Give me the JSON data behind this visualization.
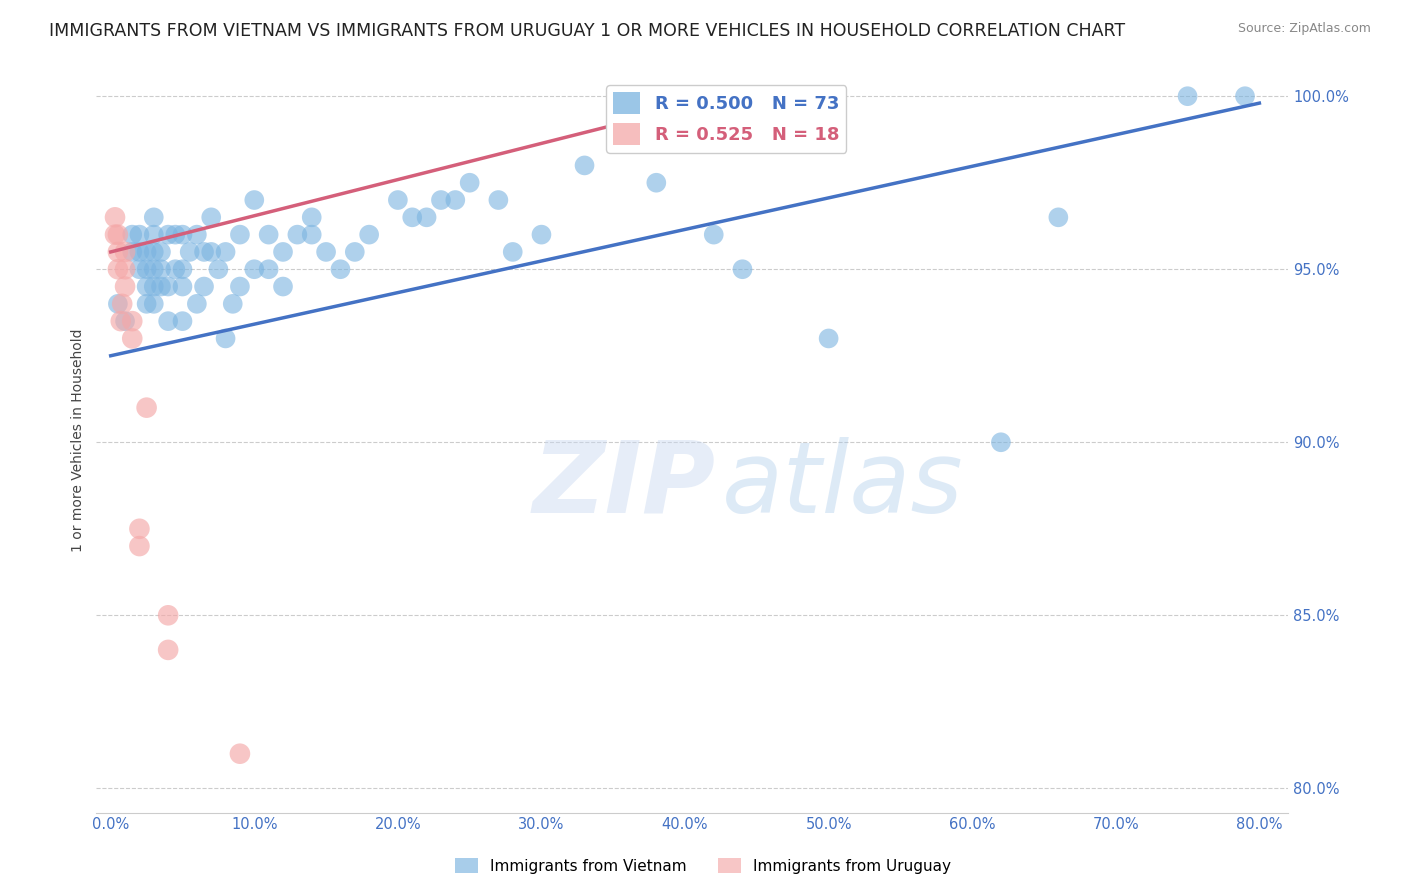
{
  "title": "IMMIGRANTS FROM VIETNAM VS IMMIGRANTS FROM URUGUAY 1 OR MORE VEHICLES IN HOUSEHOLD CORRELATION CHART",
  "source": "Source: ZipAtlas.com",
  "ylabel": "1 or more Vehicles in Household",
  "xlim": [
    -0.01,
    0.82
  ],
  "ylim": [
    0.793,
    1.008
  ],
  "xticks": [
    0.0,
    0.1,
    0.2,
    0.3,
    0.4,
    0.5,
    0.6,
    0.7,
    0.8
  ],
  "xticklabels": [
    "0.0%",
    "10.0%",
    "20.0%",
    "30.0%",
    "40.0%",
    "50.0%",
    "60.0%",
    "70.0%",
    "80.0%"
  ],
  "yticks": [
    0.8,
    0.85,
    0.9,
    0.95,
    1.0
  ],
  "yticklabels": [
    "80.0%",
    "85.0%",
    "90.0%",
    "95.0%",
    "100.0%"
  ],
  "vietnam_R": 0.5,
  "vietnam_N": 73,
  "uruguay_R": 0.525,
  "uruguay_N": 18,
  "vietnam_color": "#7ab3e0",
  "uruguay_color": "#f4a8a8",
  "vietnam_line_color": "#4472c4",
  "uruguay_line_color": "#d45f7a",
  "watermark_zip": "ZIP",
  "watermark_atlas": "atlas",
  "vietnam_x": [
    0.005,
    0.01,
    0.015,
    0.015,
    0.02,
    0.02,
    0.02,
    0.025,
    0.025,
    0.025,
    0.025,
    0.03,
    0.03,
    0.03,
    0.03,
    0.03,
    0.03,
    0.035,
    0.035,
    0.035,
    0.04,
    0.04,
    0.04,
    0.045,
    0.045,
    0.05,
    0.05,
    0.05,
    0.05,
    0.055,
    0.06,
    0.06,
    0.065,
    0.065,
    0.07,
    0.07,
    0.075,
    0.08,
    0.08,
    0.085,
    0.09,
    0.09,
    0.1,
    0.1,
    0.11,
    0.11,
    0.12,
    0.12,
    0.13,
    0.14,
    0.14,
    0.15,
    0.16,
    0.17,
    0.18,
    0.2,
    0.21,
    0.22,
    0.23,
    0.24,
    0.25,
    0.27,
    0.28,
    0.3,
    0.33,
    0.38,
    0.42,
    0.44,
    0.5,
    0.62,
    0.66,
    0.75,
    0.79
  ],
  "vietnam_y": [
    0.94,
    0.935,
    0.955,
    0.96,
    0.95,
    0.955,
    0.96,
    0.94,
    0.945,
    0.95,
    0.955,
    0.94,
    0.945,
    0.95,
    0.955,
    0.96,
    0.965,
    0.945,
    0.95,
    0.955,
    0.935,
    0.945,
    0.96,
    0.95,
    0.96,
    0.935,
    0.945,
    0.95,
    0.96,
    0.955,
    0.94,
    0.96,
    0.945,
    0.955,
    0.955,
    0.965,
    0.95,
    0.93,
    0.955,
    0.94,
    0.945,
    0.96,
    0.95,
    0.97,
    0.95,
    0.96,
    0.945,
    0.955,
    0.96,
    0.96,
    0.965,
    0.955,
    0.95,
    0.955,
    0.96,
    0.97,
    0.965,
    0.965,
    0.97,
    0.97,
    0.975,
    0.97,
    0.955,
    0.96,
    0.98,
    0.975,
    0.96,
    0.95,
    0.93,
    0.9,
    0.965,
    1.0,
    1.0
  ],
  "uruguay_x": [
    0.003,
    0.003,
    0.005,
    0.005,
    0.005,
    0.007,
    0.008,
    0.01,
    0.01,
    0.01,
    0.015,
    0.015,
    0.02,
    0.02,
    0.025,
    0.04,
    0.04,
    0.09
  ],
  "uruguay_y": [
    0.96,
    0.965,
    0.95,
    0.955,
    0.96,
    0.935,
    0.94,
    0.945,
    0.95,
    0.955,
    0.93,
    0.935,
    0.87,
    0.875,
    0.91,
    0.84,
    0.85,
    0.81
  ],
  "vietnam_trend_x0": 0.0,
  "vietnam_trend_x1": 0.8,
  "vietnam_trend_y0": 0.925,
  "vietnam_trend_y1": 0.998,
  "uruguay_trend_x0": 0.0,
  "uruguay_trend_x1": 0.44,
  "uruguay_trend_y0": 0.955,
  "uruguay_trend_y1": 1.001,
  "background_color": "#ffffff",
  "grid_color": "#cccccc",
  "tick_label_color": "#4472c4",
  "title_fontsize": 12.5,
  "axis_label_fontsize": 10,
  "source_color": "#888888",
  "title_color": "#222222"
}
